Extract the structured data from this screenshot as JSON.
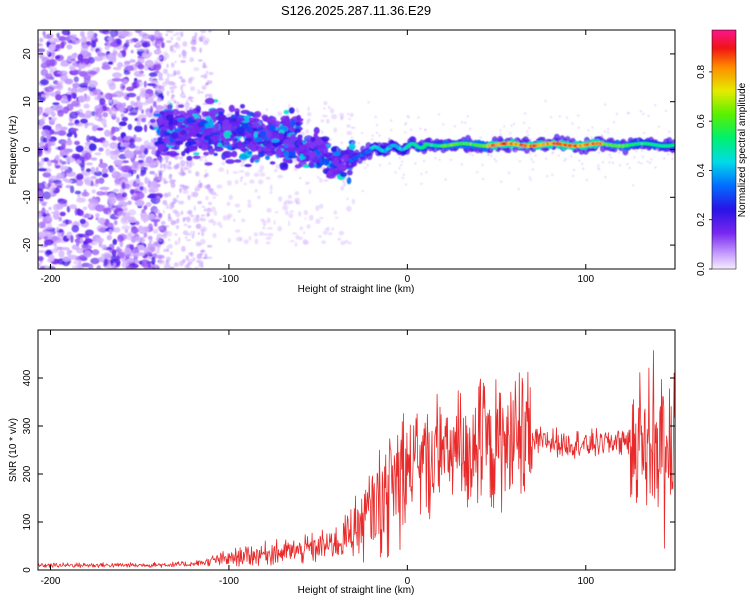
{
  "chart_data": [
    {
      "type": "heatmap",
      "title": "S126.2025.287.11.36.E29",
      "xlabel": "Height of straight line (km)",
      "ylabel": "Frequency (Hz)",
      "xlim": [
        -207,
        150
      ],
      "ylim": [
        -25,
        25
      ],
      "x_ticks": [
        -200,
        -100,
        0,
        100
      ],
      "x_tick_labels": [
        "-200",
        "-100",
        "0",
        "100"
      ],
      "y_ticks": [
        -20,
        -10,
        0,
        10,
        20
      ],
      "y_tick_labels": [
        "-20",
        "-10",
        "0",
        "10",
        "20"
      ],
      "colorbar": {
        "label": "Normalized spectral amplitude",
        "range": [
          0,
          0.97
        ],
        "ticks": [
          0.0,
          0.2,
          0.4,
          0.6,
          0.8
        ],
        "tick_labels": [
          "0.0",
          "0.2",
          "0.4",
          "0.6",
          "0.8"
        ],
        "colormap": "rainbow"
      },
      "regions": [
        {
          "name": "diffuse noise",
          "x_range": [
            -207,
            -140
          ],
          "freq_range": [
            -25,
            25
          ],
          "amplitude": 0.15
        },
        {
          "name": "sparse scatter",
          "x_range": [
            -140,
            -110
          ],
          "freq_range": [
            -25,
            25
          ],
          "amplitude": 0.05
        },
        {
          "name": "broadened band",
          "x_range": [
            -140,
            -30
          ],
          "freq_center": [
            4,
            4,
            2,
            2,
            -3
          ],
          "amplitude": 0.2
        },
        {
          "name": "ridge",
          "x_range": [
            -30,
            150
          ],
          "freq_center": [
            -1,
            0,
            1,
            1,
            1
          ],
          "amplitude": 0.9
        }
      ]
    },
    {
      "type": "line",
      "xlabel": "Height of straight line (km)",
      "ylabel": "SNR (10 * v/v)",
      "xlim": [
        -207,
        150
      ],
      "ylim": [
        0,
        500
      ],
      "x_ticks": [
        -200,
        -100,
        0,
        100
      ],
      "x_tick_labels": [
        "-200",
        "-100",
        "0",
        "100"
      ],
      "y_ticks": [
        0,
        100,
        200,
        300,
        400
      ],
      "y_tick_labels": [
        "0",
        "100",
        "200",
        "300",
        "400"
      ],
      "color": "#e82a2a",
      "trend": {
        "x": [
          -207,
          -150,
          -120,
          -100,
          -80,
          -60,
          -40,
          -25,
          -10,
          0,
          20,
          40,
          60,
          80,
          100,
          120,
          140,
          150
        ],
        "y": [
          10,
          10,
          12,
          25,
          35,
          40,
          55,
          100,
          170,
          200,
          240,
          255,
          265,
          268,
          262,
          270,
          280,
          260
        ]
      }
    }
  ]
}
